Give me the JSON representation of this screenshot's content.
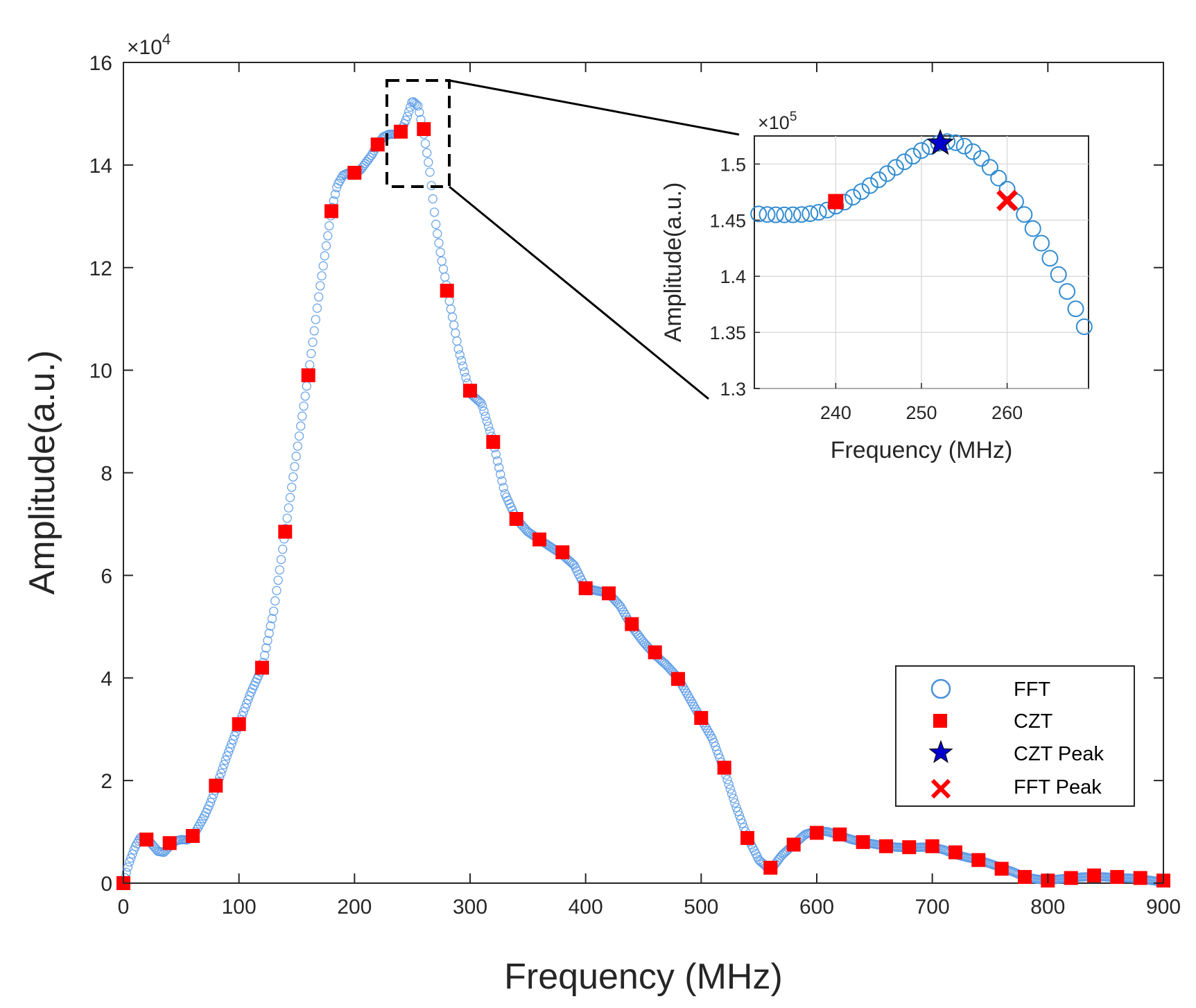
{
  "chart_data": [
    {
      "id": "main",
      "type": "scatter",
      "xlabel": "Frequency (MHz)",
      "ylabel": "Amplitude(a.u.)",
      "xlim": [
        0,
        900
      ],
      "ylim": [
        0,
        16
      ],
      "y_multiplier_label": "×10",
      "y_multiplier_exp": "4",
      "xticks": [
        "0",
        "100",
        "200",
        "300",
        "400",
        "500",
        "600",
        "700",
        "800",
        "900"
      ],
      "yticks": [
        "0",
        "2",
        "4",
        "6",
        "8",
        "10",
        "12",
        "14",
        "16"
      ],
      "grid": false,
      "legend_position": "bottom-right",
      "legend": [
        {
          "label": "FFT",
          "marker": "open-circle",
          "color": "#4A90D9"
        },
        {
          "label": "CZT",
          "marker": "filled-square",
          "color": "#FF0000"
        },
        {
          "label": "CZT Peak",
          "marker": "star",
          "color": "#0000CC"
        },
        {
          "label": "FFT Peak",
          "marker": "x",
          "color": "#FF0000"
        }
      ],
      "fft_curve": {
        "name": "FFT",
        "color": "#5B9BE6",
        "x": [
          0,
          5,
          10,
          15,
          20,
          25,
          30,
          35,
          40,
          45,
          50,
          55,
          60,
          65,
          70,
          75,
          80,
          90,
          100,
          110,
          120,
          130,
          140,
          150,
          160,
          170,
          180,
          185,
          190,
          195,
          200,
          205,
          210,
          215,
          220,
          225,
          230,
          235,
          240,
          245,
          250,
          255,
          260,
          265,
          270,
          275,
          280,
          290,
          300,
          310,
          320,
          330,
          340,
          350,
          360,
          370,
          380,
          390,
          400,
          410,
          420,
          430,
          440,
          450,
          460,
          470,
          480,
          490,
          500,
          510,
          520,
          530,
          540,
          550,
          560,
          570,
          580,
          590,
          600,
          610,
          620,
          630,
          640,
          650,
          660,
          670,
          680,
          690,
          700,
          710,
          720,
          730,
          740,
          750,
          760,
          770,
          780,
          790,
          800,
          810,
          820,
          830,
          840,
          850,
          860,
          870,
          880,
          890,
          900
        ],
        "y": [
          0,
          0.4,
          0.7,
          0.9,
          0.88,
          0.75,
          0.62,
          0.6,
          0.72,
          0.82,
          0.85,
          0.84,
          0.9,
          1.1,
          1.3,
          1.55,
          1.85,
          2.5,
          3.1,
          3.7,
          4.2,
          5.3,
          6.85,
          8.4,
          9.9,
          11.6,
          13.1,
          13.6,
          13.8,
          13.85,
          13.85,
          13.9,
          14.05,
          14.2,
          14.4,
          14.55,
          14.6,
          14.6,
          14.65,
          14.9,
          15.25,
          15.15,
          14.6,
          13.9,
          12.9,
          12.2,
          11.6,
          10.4,
          9.55,
          9.35,
          8.6,
          7.6,
          7.1,
          6.85,
          6.7,
          6.55,
          6.4,
          6.2,
          5.75,
          5.7,
          5.65,
          5.4,
          5.0,
          4.7,
          4.45,
          4.25,
          4.0,
          3.6,
          3.2,
          2.8,
          2.2,
          1.5,
          0.9,
          0.45,
          0.25,
          0.55,
          0.75,
          0.95,
          1.02,
          1.0,
          0.93,
          0.85,
          0.8,
          0.76,
          0.72,
          0.7,
          0.69,
          0.7,
          0.7,
          0.65,
          0.56,
          0.5,
          0.45,
          0.38,
          0.3,
          0.22,
          0.12,
          0.08,
          0.05,
          0.08,
          0.1,
          0.12,
          0.13,
          0.12,
          0.1,
          0.1,
          0.08,
          0.05,
          0.02
        ]
      },
      "czt_points": {
        "name": "CZT",
        "color": "#FF0000",
        "x": [
          0,
          20,
          40,
          60,
          80,
          100,
          120,
          140,
          160,
          180,
          200,
          220,
          240,
          260,
          280,
          300,
          320,
          340,
          360,
          380,
          400,
          420,
          440,
          460,
          480,
          500,
          520,
          540,
          560,
          580,
          600,
          620,
          640,
          660,
          680,
          700,
          720,
          740,
          760,
          780,
          800,
          820,
          840,
          860,
          880,
          900
        ],
        "y": [
          0,
          0.85,
          0.78,
          0.92,
          1.9,
          3.1,
          4.2,
          6.85,
          9.9,
          13.1,
          13.85,
          14.4,
          14.65,
          14.7,
          11.55,
          9.6,
          8.6,
          7.1,
          6.7,
          6.45,
          5.75,
          5.65,
          5.05,
          4.5,
          3.98,
          3.22,
          2.25,
          0.88,
          0.3,
          0.75,
          0.98,
          0.95,
          0.8,
          0.72,
          0.7,
          0.72,
          0.6,
          0.45,
          0.28,
          0.12,
          0.05,
          0.1,
          0.15,
          0.12,
          0.1,
          0.05
        ]
      },
      "zoom_box": {
        "x_range": [
          228,
          278
        ],
        "y_range": [
          13.55,
          15.65
        ]
      }
    },
    {
      "id": "inset",
      "type": "scatter",
      "xlabel": "Frequency (MHz)",
      "ylabel": "Amplitude(a.u.)",
      "xlim": [
        230.5,
        269.5
      ],
      "ylim": [
        1.3,
        1.525
      ],
      "y_multiplier_label": "×10",
      "y_multiplier_exp": "5",
      "xticks": [
        "240",
        "250",
        "260"
      ],
      "yticks": [
        "1.3",
        "1.35",
        "1.4",
        "1.45",
        "1.5"
      ],
      "grid": true,
      "fft_points": {
        "name": "FFT",
        "color": "#2F8BD1",
        "x": [
          231,
          232,
          233,
          234,
          235,
          236,
          237,
          238,
          239,
          240,
          241,
          242,
          243,
          244,
          245,
          246,
          247,
          248,
          249,
          250,
          251,
          252,
          253,
          254,
          255,
          256,
          257,
          258,
          259,
          260,
          261,
          262,
          263,
          264,
          265,
          266,
          267,
          268,
          269
        ],
        "y": [
          1.4555,
          1.455,
          1.4548,
          1.4547,
          1.4548,
          1.455,
          1.4558,
          1.457,
          1.459,
          1.4625,
          1.466,
          1.4705,
          1.4755,
          1.4808,
          1.486,
          1.4915,
          1.497,
          1.502,
          1.507,
          1.512,
          1.5155,
          1.5185,
          1.52,
          1.519,
          1.516,
          1.511,
          1.505,
          1.497,
          1.4875,
          1.4775,
          1.4665,
          1.455,
          1.4425,
          1.4295,
          1.416,
          1.4015,
          1.3865,
          1.371,
          1.355
        ]
      },
      "czt_point": {
        "name": "CZT",
        "x": 240,
        "y": 1.4665,
        "color": "#FF0000"
      },
      "czt_peak": {
        "name": "CZT Peak",
        "x": 252.2,
        "y": 1.5185,
        "color": "#0000CC"
      },
      "fft_peak": {
        "name": "FFT Peak",
        "x": 260,
        "y": 1.4675,
        "color": "#FF0000"
      }
    }
  ]
}
